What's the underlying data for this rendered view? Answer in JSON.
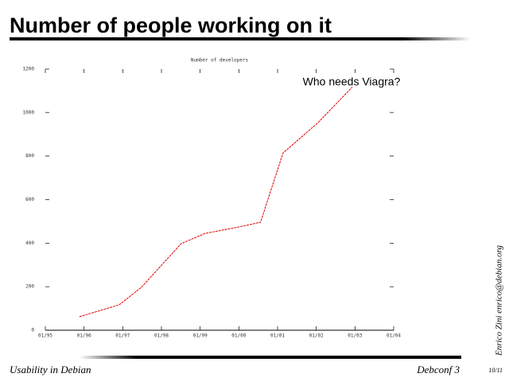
{
  "slide": {
    "title": "Number of people working on it",
    "footer_left": "Usability in Debian",
    "footer_right": "Debconf 3",
    "page": "10/11",
    "author": "Enrico Zini enrico@debian.org"
  },
  "chart_data": {
    "type": "line",
    "title": "Number of developers",
    "annotation": "Who needs Viagra?",
    "x": [
      1995.88,
      1996.91,
      1997.48,
      1998.51,
      1999.13,
      1999.99,
      2000.56,
      2001.14,
      2002.04,
      2002.93
    ],
    "series": [
      {
        "name": "Number of developers",
        "color": "#e00000",
        "values": [
          62,
          117,
          197,
          398,
          445,
          474,
          496,
          814,
          953,
          1117
        ]
      }
    ],
    "xlim": [
      1995,
      2004
    ],
    "xticks": [
      {
        "value": 1995,
        "label": "01/95"
      },
      {
        "value": 1996,
        "label": "01/96"
      },
      {
        "value": 1997,
        "label": "01/97"
      },
      {
        "value": 1998,
        "label": "01/98"
      },
      {
        "value": 1999,
        "label": "01/99"
      },
      {
        "value": 2000,
        "label": "01/00"
      },
      {
        "value": 2001,
        "label": "01/01"
      },
      {
        "value": 2002,
        "label": "01/02"
      },
      {
        "value": 2003,
        "label": "01/03"
      },
      {
        "value": 2004,
        "label": "01/04"
      }
    ],
    "ylim": [
      0,
      1200
    ],
    "yticks": [
      0,
      200,
      400,
      600,
      800,
      1000,
      1200
    ],
    "grid": false
  }
}
